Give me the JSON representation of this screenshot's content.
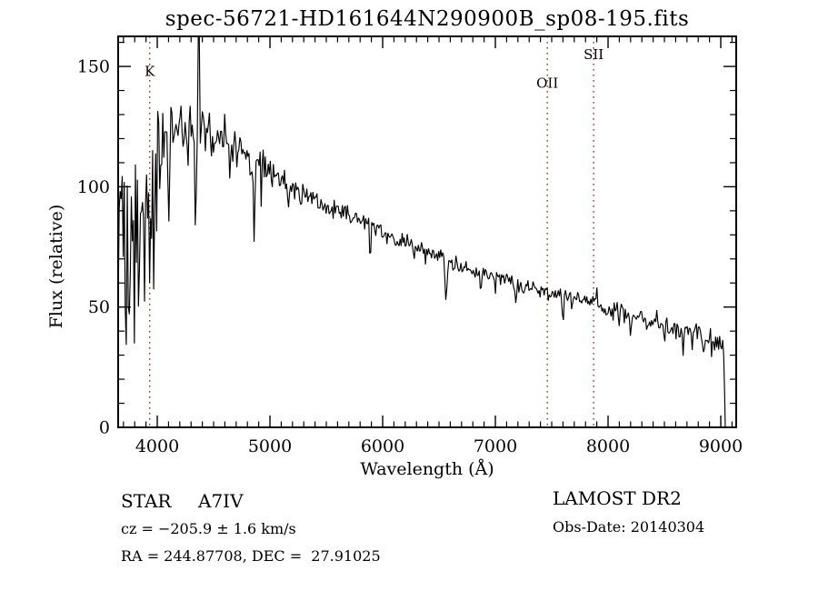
{
  "title": "spec-56721-HD161644N290900B_sp08-195.fits",
  "footer": {
    "class_label": "STAR",
    "subclass": "A7IV",
    "cz_line": "cz = −205.9 ± 1.6 km/s",
    "radec_line": "RA = 244.87708, DEC =  27.91025",
    "survey": "LAMOST DR2",
    "obs_date_line": "Obs-Date: 20140304"
  },
  "chart_data": {
    "type": "line",
    "title": "spec-56721-HD161644N290900B_sp08-195.fits",
    "xlabel": "Wavelength (Å)",
    "ylabel": "Flux (relative)",
    "xlim": [
      3653,
      9137
    ],
    "ylim": [
      0,
      162.5
    ],
    "x_ticks": [
      4000,
      5000,
      6000,
      7000,
      8000,
      9000
    ],
    "y_ticks": [
      0,
      50,
      100,
      150
    ],
    "x_minor_step": 100,
    "y_minor_step": 10,
    "grid": false,
    "line_color": "#000000",
    "axis_color": "#000000",
    "background": "#ffffff",
    "marker_color": "#a03527",
    "spectral_markers": [
      {
        "label": "K",
        "wavelength": 3933,
        "label_flux": 148
      },
      {
        "label": "OII",
        "wavelength": 7461,
        "label_flux": 143
      },
      {
        "label": "SII",
        "wavelength": 7872,
        "label_flux": 155
      }
    ],
    "spectrum": {
      "description": "Noisy stellar (A7IV) spectrum: flux rises steeply from ~3650 Å, peaks ~127 near 4200 Å, declines to ~35 at 9000 Å, sharp cutoff to 0 at ~9040 Å. Deep Balmer/Ca absorption in blue, clipped cosmic-ray spike at 4370 Å.",
      "range": [
        3653,
        9040
      ],
      "sample_step": 9,
      "seed": 19,
      "clip_flux": 162.3,
      "continuum": [
        [
          3653,
          78
        ],
        [
          3680,
          86
        ],
        [
          3720,
          93
        ],
        [
          3760,
          100
        ],
        [
          3800,
          106
        ],
        [
          3850,
          111
        ],
        [
          3900,
          115
        ],
        [
          3950,
          118
        ],
        [
          4000,
          121
        ],
        [
          4060,
          124
        ],
        [
          4150,
          126
        ],
        [
          4250,
          127
        ],
        [
          4350,
          126
        ],
        [
          4450,
          124
        ],
        [
          4550,
          121
        ],
        [
          4650,
          118
        ],
        [
          4750,
          115
        ],
        [
          4850,
          112
        ],
        [
          4950,
          108
        ],
        [
          5050,
          104
        ],
        [
          5150,
          101
        ],
        [
          5250,
          98
        ],
        [
          5350,
          95
        ],
        [
          5450,
          93
        ],
        [
          5550,
          91
        ],
        [
          5650,
          89
        ],
        [
          5750,
          87
        ],
        [
          5850,
          85
        ],
        [
          5950,
          82
        ],
        [
          6050,
          80
        ],
        [
          6150,
          78
        ],
        [
          6250,
          76
        ],
        [
          6350,
          74
        ],
        [
          6450,
          72
        ],
        [
          6550,
          70
        ],
        [
          6650,
          68
        ],
        [
          6750,
          66
        ],
        [
          6850,
          65
        ],
        [
          6950,
          63
        ],
        [
          7050,
          62
        ],
        [
          7150,
          60
        ],
        [
          7250,
          59
        ],
        [
          7350,
          58
        ],
        [
          7460,
          56
        ],
        [
          7550,
          55
        ],
        [
          7650,
          54
        ],
        [
          7750,
          53
        ],
        [
          7850,
          52
        ],
        [
          7950,
          50
        ],
        [
          8050,
          48
        ],
        [
          8150,
          47
        ],
        [
          8250,
          46
        ],
        [
          8350,
          45
        ],
        [
          8450,
          44
        ],
        [
          8550,
          42
        ],
        [
          8650,
          41
        ],
        [
          8750,
          40
        ],
        [
          8850,
          38
        ],
        [
          8950,
          36
        ],
        [
          9000,
          35
        ],
        [
          9025,
          33
        ],
        [
          9040,
          0
        ]
      ],
      "absorption_lines": [
        [
          3712,
          30,
          6
        ],
        [
          3727,
          42,
          5
        ],
        [
          3745,
          35,
          5
        ],
        [
          3762,
          45,
          5
        ],
        [
          3782,
          40,
          5
        ],
        [
          3798,
          52,
          6
        ],
        [
          3820,
          28,
          5
        ],
        [
          3835,
          58,
          6
        ],
        [
          3855,
          25,
          5
        ],
        [
          3870,
          30,
          5
        ],
        [
          3889,
          60,
          6
        ],
        [
          3912,
          28,
          4
        ],
        [
          3933,
          58,
          5
        ],
        [
          3948,
          30,
          4
        ],
        [
          3970,
          60,
          6
        ],
        [
          3995,
          25,
          4
        ],
        [
          4026,
          22,
          5
        ],
        [
          4055,
          15,
          4
        ],
        [
          4102,
          46,
          7
        ],
        [
          4144,
          14,
          4
        ],
        [
          4180,
          12,
          4
        ],
        [
          4226,
          14,
          4
        ],
        [
          4272,
          12,
          4
        ],
        [
          4315,
          14,
          4
        ],
        [
          4340,
          45,
          6
        ],
        [
          4385,
          14,
          4
        ],
        [
          4425,
          12,
          4
        ],
        [
          4481,
          12,
          4
        ],
        [
          4520,
          10,
          4
        ],
        [
          4640,
          14,
          5
        ],
        [
          4713,
          10,
          4
        ],
        [
          4861,
          39,
          6
        ],
        [
          4922,
          10,
          4
        ],
        [
          5015,
          8,
          4
        ],
        [
          5170,
          9,
          5
        ],
        [
          5270,
          6,
          4
        ],
        [
          5430,
          6,
          4
        ],
        [
          5890,
          12,
          6
        ],
        [
          6160,
          6,
          4
        ],
        [
          6280,
          8,
          5
        ],
        [
          6380,
          5,
          4
        ],
        [
          6563,
          21,
          7
        ],
        [
          6870,
          11,
          6
        ],
        [
          7000,
          5,
          4
        ],
        [
          7180,
          7,
          5
        ],
        [
          7250,
          5,
          4
        ],
        [
          7600,
          12,
          7
        ],
        [
          7680,
          6,
          4
        ],
        [
          8100,
          5,
          4
        ],
        [
          8200,
          8,
          5
        ],
        [
          8350,
          5,
          4
        ],
        [
          8500,
          6,
          4
        ],
        [
          8545,
          7,
          4
        ],
        [
          8600,
          5,
          4
        ],
        [
          8665,
          8,
          4
        ],
        [
          8750,
          6,
          4
        ],
        [
          8850,
          9,
          5
        ],
        [
          8920,
          6,
          4
        ],
        [
          9000,
          7,
          4
        ]
      ],
      "emission_spikes": [
        [
          3705,
          42,
          3
        ],
        [
          3765,
          30,
          3
        ],
        [
          4370,
          95,
          4
        ],
        [
          4595,
          15,
          3
        ],
        [
          7790,
          6,
          2.5
        ],
        [
          7900,
          6,
          2.5
        ],
        [
          8430,
          5,
          2.5
        ]
      ],
      "noise_profile": [
        [
          3653,
          30
        ],
        [
          3700,
          30
        ],
        [
          3750,
          26
        ],
        [
          3800,
          20
        ],
        [
          3860,
          16
        ],
        [
          3920,
          13
        ],
        [
          4000,
          10
        ],
        [
          4100,
          8.5
        ],
        [
          4250,
          8
        ],
        [
          4500,
          7
        ],
        [
          4800,
          5.5
        ],
        [
          5000,
          4.5
        ],
        [
          5300,
          4
        ],
        [
          5600,
          3.2
        ],
        [
          6000,
          2.8
        ],
        [
          6500,
          2.4
        ],
        [
          7000,
          2.4
        ],
        [
          7500,
          2.6
        ],
        [
          8000,
          2.8
        ],
        [
          8500,
          3.2
        ],
        [
          8800,
          3.6
        ],
        [
          9040,
          4
        ]
      ]
    }
  }
}
